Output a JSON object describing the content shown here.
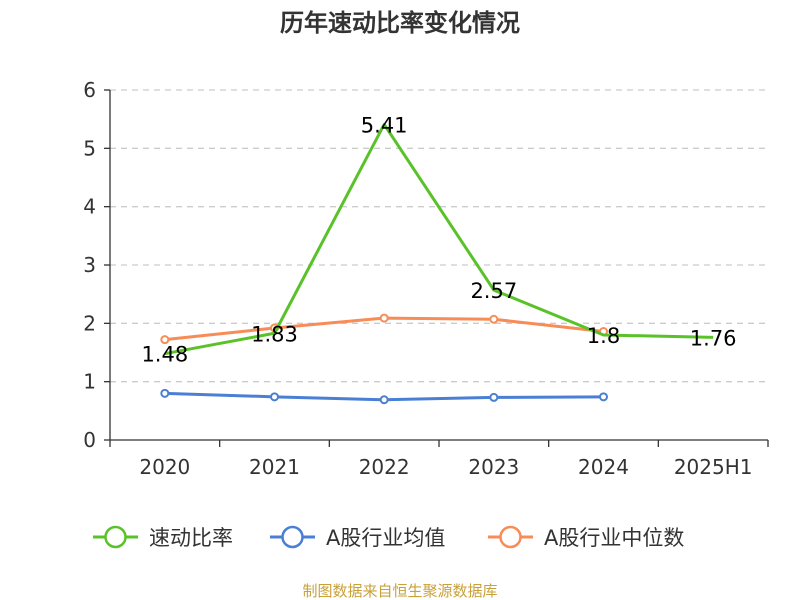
{
  "chart_data": {
    "type": "line",
    "title": "历年速动比率变化情况",
    "categories": [
      "2020",
      "2021",
      "2022",
      "2023",
      "2024",
      "2025H1"
    ],
    "y_ticks": [
      "0",
      "1",
      "2",
      "3",
      "4",
      "5",
      "6"
    ],
    "ylim": [
      0,
      6
    ],
    "grid": true,
    "legend_position": "bottom",
    "series": [
      {
        "name": "速动比率",
        "color": "#5ac229",
        "values": [
          1.48,
          1.83,
          5.41,
          2.57,
          1.8,
          1.76
        ],
        "labels": [
          "1.48",
          "1.83",
          "5.41",
          "2.57",
          "1.8",
          "1.76"
        ]
      },
      {
        "name": "A股行业均值",
        "color": "#4a7fd4",
        "values": [
          0.8,
          0.74,
          0.69,
          0.73,
          0.74,
          null
        ]
      },
      {
        "name": "A股行业中位数",
        "color": "#f78c57",
        "values": [
          1.72,
          1.92,
          2.09,
          2.07,
          1.86,
          null
        ]
      }
    ]
  },
  "source": {
    "text": "制图数据来自恒生聚源数据库",
    "color": "#c9a13b"
  }
}
